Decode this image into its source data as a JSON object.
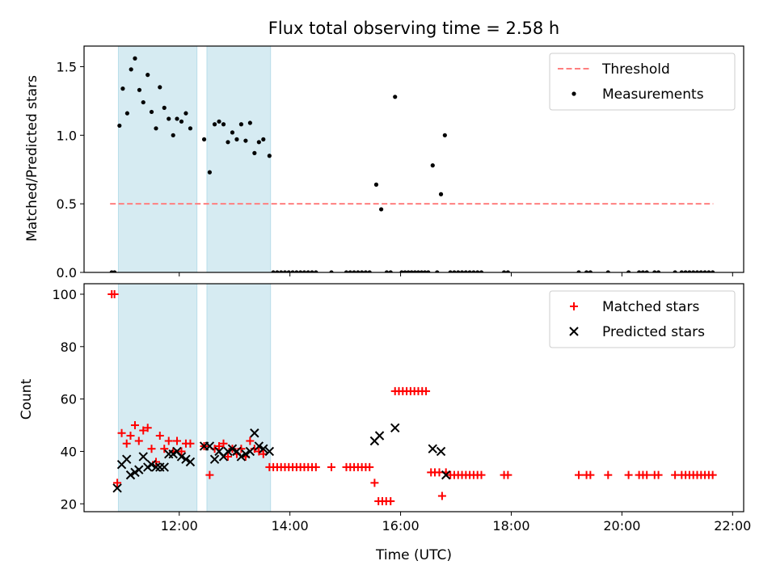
{
  "chart_data": [
    {
      "type": "scatter",
      "title": "Flux total observing time = 2.58 h",
      "ylabel": "Matched/Predicted stars",
      "xlabel": "",
      "xlim": [
        10.28,
        22.2
      ],
      "ylim": [
        0,
        1.65
      ],
      "y_ticks": [
        0.0,
        0.5,
        1.0,
        1.5
      ],
      "y_tick_labels": [
        "0.0",
        "0.5",
        "1.0",
        "1.5"
      ],
      "shaded_intervals": [
        [
          10.9,
          12.32
        ],
        [
          12.5,
          13.65
        ]
      ],
      "shade_color": "#add8e6",
      "threshold": {
        "name": "Threshold",
        "value": 0.5,
        "x_range": [
          10.75,
          21.65
        ],
        "color": "#ff7f7f"
      },
      "legend": {
        "position": "upper-right",
        "entries": [
          "Threshold",
          "Measurements"
        ]
      },
      "series": [
        {
          "name": "Measurements",
          "color": "#000000",
          "marker": "dot",
          "points": [
            [
              10.78,
              0
            ],
            [
              10.83,
              0
            ],
            [
              10.92,
              1.07
            ],
            [
              10.98,
              1.34
            ],
            [
              11.06,
              1.16
            ],
            [
              11.13,
              1.48
            ],
            [
              11.2,
              1.56
            ],
            [
              11.28,
              1.33
            ],
            [
              11.35,
              1.24
            ],
            [
              11.43,
              1.44
            ],
            [
              11.5,
              1.17
            ],
            [
              11.58,
              1.05
            ],
            [
              11.65,
              1.35
            ],
            [
              11.73,
              1.2
            ],
            [
              11.81,
              1.12
            ],
            [
              11.89,
              1.0
            ],
            [
              11.96,
              1.12
            ],
            [
              12.04,
              1.1
            ],
            [
              12.12,
              1.16
            ],
            [
              12.2,
              1.05
            ],
            [
              12.45,
              0.97
            ],
            [
              12.55,
              0.73
            ],
            [
              12.64,
              1.08
            ],
            [
              12.72,
              1.1
            ],
            [
              12.8,
              1.08
            ],
            [
              12.88,
              0.95
            ],
            [
              12.96,
              1.02
            ],
            [
              13.04,
              0.97
            ],
            [
              13.12,
              1.08
            ],
            [
              13.2,
              0.96
            ],
            [
              13.28,
              1.09
            ],
            [
              13.36,
              0.87
            ],
            [
              13.44,
              0.95
            ],
            [
              13.52,
              0.97
            ],
            [
              13.63,
              0.85
            ],
            [
              13.7,
              0
            ],
            [
              13.77,
              0
            ],
            [
              13.84,
              0
            ],
            [
              13.91,
              0
            ],
            [
              13.98,
              0
            ],
            [
              14.05,
              0
            ],
            [
              14.12,
              0
            ],
            [
              14.19,
              0
            ],
            [
              14.26,
              0
            ],
            [
              14.33,
              0
            ],
            [
              14.4,
              0
            ],
            [
              14.47,
              0
            ],
            [
              14.75,
              0
            ],
            [
              15.02,
              0
            ],
            [
              15.09,
              0
            ],
            [
              15.16,
              0
            ],
            [
              15.23,
              0
            ],
            [
              15.3,
              0
            ],
            [
              15.37,
              0
            ],
            [
              15.44,
              0
            ],
            [
              15.56,
              0.64
            ],
            [
              15.65,
              0.46
            ],
            [
              15.75,
              0
            ],
            [
              15.82,
              0
            ],
            [
              15.9,
              1.28
            ],
            [
              16.02,
              0
            ],
            [
              16.08,
              0
            ],
            [
              16.14,
              0
            ],
            [
              16.2,
              0
            ],
            [
              16.26,
              0
            ],
            [
              16.32,
              0
            ],
            [
              16.38,
              0
            ],
            [
              16.44,
              0
            ],
            [
              16.5,
              0
            ],
            [
              16.58,
              0.78
            ],
            [
              16.66,
              0
            ],
            [
              16.73,
              0.57
            ],
            [
              16.8,
              1.0
            ],
            [
              16.9,
              0
            ],
            [
              16.97,
              0
            ],
            [
              17.04,
              0
            ],
            [
              17.11,
              0
            ],
            [
              17.18,
              0
            ],
            [
              17.25,
              0
            ],
            [
              17.32,
              0
            ],
            [
              17.39,
              0
            ],
            [
              17.46,
              0
            ],
            [
              17.87,
              0
            ],
            [
              17.94,
              0
            ],
            [
              19.22,
              0
            ],
            [
              19.36,
              0
            ],
            [
              19.43,
              0
            ],
            [
              19.75,
              0
            ],
            [
              20.12,
              0
            ],
            [
              20.31,
              0
            ],
            [
              20.38,
              0
            ],
            [
              20.45,
              0
            ],
            [
              20.59,
              0
            ],
            [
              20.66,
              0
            ],
            [
              20.96,
              0
            ],
            [
              21.08,
              0
            ],
            [
              21.15,
              0
            ],
            [
              21.22,
              0
            ],
            [
              21.29,
              0
            ],
            [
              21.36,
              0
            ],
            [
              21.43,
              0
            ],
            [
              21.5,
              0
            ],
            [
              21.57,
              0
            ],
            [
              21.64,
              0
            ]
          ]
        }
      ]
    },
    {
      "type": "scatter",
      "title": "",
      "xlabel": "Time (UTC)",
      "ylabel": "Count",
      "xlim": [
        10.28,
        22.2
      ],
      "ylim": [
        17,
        104
      ],
      "x_ticks": [
        12,
        14,
        16,
        18,
        20,
        22
      ],
      "x_tick_labels": [
        "12:00",
        "14:00",
        "16:00",
        "18:00",
        "20:00",
        "22:00"
      ],
      "y_ticks": [
        20,
        40,
        60,
        80,
        100
      ],
      "y_tick_labels": [
        "20",
        "40",
        "60",
        "80",
        "100"
      ],
      "shaded_intervals": [
        [
          10.9,
          12.32
        ],
        [
          12.5,
          13.65
        ]
      ],
      "shade_color": "#add8e6",
      "legend": {
        "position": "upper-right",
        "entries": [
          "Matched stars",
          "Predicted stars"
        ]
      },
      "series": [
        {
          "name": "Matched stars",
          "color": "#ff0000",
          "marker": "plus",
          "points": [
            [
              10.78,
              100
            ],
            [
              10.83,
              100
            ],
            [
              10.88,
              28
            ],
            [
              10.96,
              47
            ],
            [
              11.05,
              43
            ],
            [
              11.12,
              46
            ],
            [
              11.2,
              50
            ],
            [
              11.27,
              44
            ],
            [
              11.35,
              48
            ],
            [
              11.43,
              49
            ],
            [
              11.5,
              41
            ],
            [
              11.58,
              36
            ],
            [
              11.65,
              46
            ],
            [
              11.73,
              41
            ],
            [
              11.81,
              44
            ],
            [
              11.89,
              40
            ],
            [
              11.96,
              44
            ],
            [
              12.04,
              40
            ],
            [
              12.12,
              43
            ],
            [
              12.2,
              43
            ],
            [
              12.45,
              42
            ],
            [
              12.55,
              31
            ],
            [
              12.64,
              41
            ],
            [
              12.72,
              42
            ],
            [
              12.8,
              43
            ],
            [
              12.88,
              38
            ],
            [
              12.96,
              41
            ],
            [
              13.04,
              39
            ],
            [
              13.12,
              41
            ],
            [
              13.2,
              38
            ],
            [
              13.28,
              44
            ],
            [
              13.36,
              41
            ],
            [
              13.44,
              40
            ],
            [
              13.52,
              39
            ],
            [
              13.63,
              34
            ],
            [
              13.7,
              34
            ],
            [
              13.77,
              34
            ],
            [
              13.84,
              34
            ],
            [
              13.91,
              34
            ],
            [
              13.98,
              34
            ],
            [
              14.05,
              34
            ],
            [
              14.12,
              34
            ],
            [
              14.19,
              34
            ],
            [
              14.26,
              34
            ],
            [
              14.33,
              34
            ],
            [
              14.4,
              34
            ],
            [
              14.47,
              34
            ],
            [
              14.75,
              34
            ],
            [
              15.02,
              34
            ],
            [
              15.09,
              34
            ],
            [
              15.16,
              34
            ],
            [
              15.23,
              34
            ],
            [
              15.3,
              34
            ],
            [
              15.37,
              34
            ],
            [
              15.44,
              34
            ],
            [
              15.53,
              28
            ],
            [
              15.6,
              21
            ],
            [
              15.67,
              21
            ],
            [
              15.74,
              21
            ],
            [
              15.82,
              21
            ],
            [
              15.9,
              63
            ],
            [
              15.97,
              63
            ],
            [
              16.04,
              63
            ],
            [
              16.11,
              63
            ],
            [
              16.18,
              63
            ],
            [
              16.25,
              63
            ],
            [
              16.32,
              63
            ],
            [
              16.39,
              63
            ],
            [
              16.46,
              63
            ],
            [
              16.55,
              32
            ],
            [
              16.62,
              32
            ],
            [
              16.7,
              32
            ],
            [
              16.75,
              23
            ],
            [
              16.82,
              32
            ],
            [
              16.9,
              31
            ],
            [
              16.97,
              31
            ],
            [
              17.04,
              31
            ],
            [
              17.11,
              31
            ],
            [
              17.18,
              31
            ],
            [
              17.25,
              31
            ],
            [
              17.32,
              31
            ],
            [
              17.39,
              31
            ],
            [
              17.46,
              31
            ],
            [
              17.87,
              31
            ],
            [
              17.94,
              31
            ],
            [
              19.22,
              31
            ],
            [
              19.36,
              31
            ],
            [
              19.43,
              31
            ],
            [
              19.75,
              31
            ],
            [
              20.12,
              31
            ],
            [
              20.31,
              31
            ],
            [
              20.38,
              31
            ],
            [
              20.45,
              31
            ],
            [
              20.59,
              31
            ],
            [
              20.66,
              31
            ],
            [
              20.96,
              31
            ],
            [
              21.08,
              31
            ],
            [
              21.15,
              31
            ],
            [
              21.22,
              31
            ],
            [
              21.29,
              31
            ],
            [
              21.36,
              31
            ],
            [
              21.43,
              31
            ],
            [
              21.5,
              31
            ],
            [
              21.57,
              31
            ],
            [
              21.64,
              31
            ]
          ]
        },
        {
          "name": "Predicted stars",
          "color": "#000000",
          "marker": "x",
          "points": [
            [
              10.88,
              26
            ],
            [
              10.96,
              35
            ],
            [
              11.05,
              37
            ],
            [
              11.12,
              31
            ],
            [
              11.2,
              32
            ],
            [
              11.27,
              33
            ],
            [
              11.35,
              38
            ],
            [
              11.43,
              34
            ],
            [
              11.5,
              35
            ],
            [
              11.58,
              34
            ],
            [
              11.65,
              34
            ],
            [
              11.73,
              34
            ],
            [
              11.81,
              39
            ],
            [
              11.89,
              39
            ],
            [
              11.96,
              40
            ],
            [
              12.04,
              38
            ],
            [
              12.12,
              37
            ],
            [
              12.2,
              36
            ],
            [
              12.45,
              42
            ],
            [
              12.55,
              42
            ],
            [
              12.64,
              37
            ],
            [
              12.72,
              40
            ],
            [
              12.8,
              38
            ],
            [
              12.88,
              40
            ],
            [
              12.96,
              41
            ],
            [
              13.04,
              40
            ],
            [
              13.12,
              38
            ],
            [
              13.2,
              39
            ],
            [
              13.28,
              40
            ],
            [
              13.36,
              47
            ],
            [
              13.44,
              42
            ],
            [
              13.52,
              41
            ],
            [
              13.63,
              40
            ],
            [
              15.53,
              44
            ],
            [
              15.62,
              46
            ],
            [
              15.9,
              49
            ],
            [
              16.58,
              41
            ],
            [
              16.73,
              40
            ],
            [
              16.82,
              31
            ]
          ]
        }
      ]
    }
  ]
}
